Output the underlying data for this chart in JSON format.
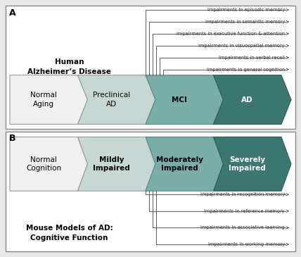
{
  "bg_color": "#e8e8e8",
  "panel_bg": "#ffffff",
  "border_color": "#888888",
  "panel_A": {
    "label": "A",
    "title": "Human\nAlzheimer’s Disease",
    "arrows": [
      {
        "label": "Normal\nAging",
        "color": "#f0f0f0",
        "edge": "#999999",
        "bold": false,
        "white_text": false
      },
      {
        "label": "Preclinical\nAD",
        "color": "#c5d8d4",
        "edge": "#999999",
        "bold": false,
        "white_text": false
      },
      {
        "label": "MCI",
        "color": "#7aada6",
        "edge": "#5a8880",
        "bold": true,
        "white_text": false
      },
      {
        "label": "AD",
        "color": "#3d7870",
        "edge": "#2a5a54",
        "bold": true,
        "white_text": true
      }
    ],
    "impairments": [
      "Impairments in episodic memory",
      "Impairments in semantic memory",
      "Impairments in executive function & attention",
      "Impairments in visuospatial memory",
      "Impairments in verbal recall",
      "Impairments in general cognition"
    ],
    "imp_side": "top"
  },
  "panel_B": {
    "label": "B",
    "title": "Mouse Models of AD:\nCognitive Function",
    "arrows": [
      {
        "label": "Normal\nCognition",
        "color": "#f0f0f0",
        "edge": "#999999",
        "bold": false,
        "white_text": false
      },
      {
        "label": "Mildly\nImpaired",
        "color": "#c5d8d4",
        "edge": "#999999",
        "bold": true,
        "white_text": false
      },
      {
        "label": "Moderately\nImpaired",
        "color": "#7aada6",
        "edge": "#5a8880",
        "bold": true,
        "white_text": false
      },
      {
        "label": "Severely\nImpaired",
        "color": "#3d7870",
        "edge": "#2a5a54",
        "bold": true,
        "white_text": true
      }
    ],
    "impairments": [
      "Impairments in recognition memory",
      "Impairments in reference memory",
      "Impairments in associative learning",
      "Impairments in working memory"
    ],
    "imp_side": "bottom"
  }
}
